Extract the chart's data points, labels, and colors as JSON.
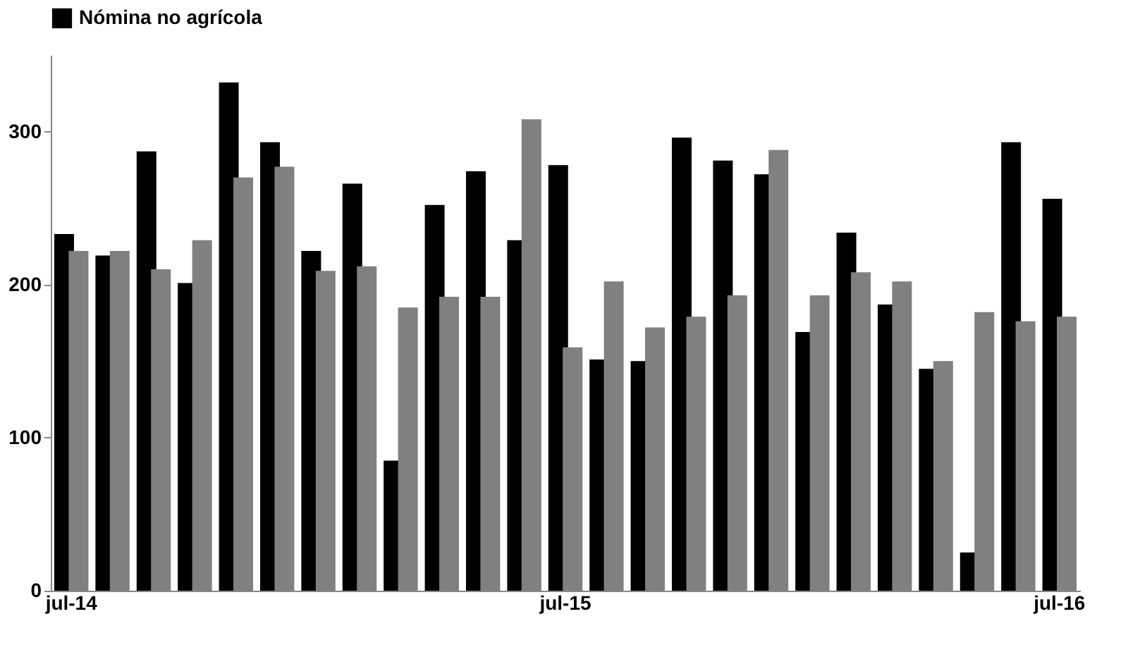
{
  "chart_data": {
    "type": "bar",
    "categories": [
      "jul-14",
      null,
      null,
      null,
      null,
      null,
      null,
      null,
      null,
      null,
      null,
      null,
      "jul-15",
      null,
      null,
      null,
      null,
      null,
      null,
      null,
      null,
      null,
      null,
      null,
      "jul-16"
    ],
    "series": [
      {
        "name": "Nómina no agrícola",
        "color": "#000000",
        "values": [
          233,
          219,
          287,
          201,
          332,
          293,
          222,
          266,
          85,
          252,
          274,
          229,
          278,
          151,
          150,
          296,
          281,
          272,
          169,
          234,
          187,
          145,
          25,
          293,
          256
        ]
      },
      {
        "color": "#808080",
        "values": [
          222,
          222,
          210,
          229,
          270,
          277,
          209,
          212,
          185,
          192,
          192,
          308,
          159,
          202,
          172,
          179,
          193,
          288,
          193,
          208,
          202,
          150,
          182,
          176,
          179
        ]
      }
    ],
    "ylim": [
      0,
      350
    ],
    "yticks": [
      0,
      100,
      200,
      300
    ],
    "grid": false,
    "legend": "top"
  }
}
